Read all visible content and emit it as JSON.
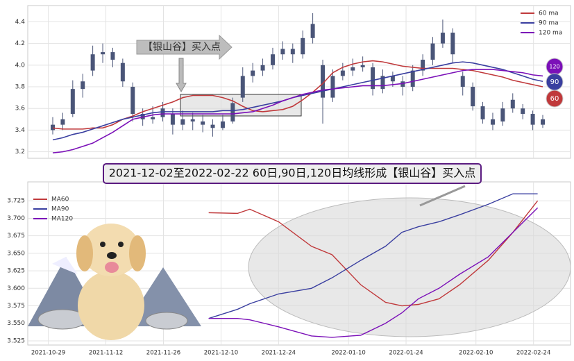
{
  "chart_data": [
    {
      "type": "candlestick",
      "legend": [
        "60 ma",
        "90 ma",
        "120 ma"
      ],
      "annotation": "【银山谷】买入点",
      "badges": [
        "120",
        "90",
        "60"
      ],
      "ylim": [
        3.14,
        4.55
      ],
      "yticks": [
        3.2,
        3.4,
        3.6,
        3.8,
        {
          "value": 4,
          "label": "4.0"
        },
        4.2,
        4.4
      ],
      "candle_color": "#4a5578",
      "ohlc": [
        [
          3.4,
          3.52,
          3.36,
          3.45
        ],
        [
          3.45,
          3.56,
          3.4,
          3.5
        ],
        [
          3.55,
          3.86,
          3.52,
          3.78
        ],
        [
          3.78,
          3.92,
          3.7,
          3.85
        ],
        [
          3.95,
          4.18,
          3.9,
          4.1
        ],
        [
          4.1,
          4.2,
          4.02,
          4.12
        ],
        [
          4.12,
          4.16,
          3.98,
          4.05
        ],
        [
          4.02,
          4.06,
          3.8,
          3.85
        ],
        [
          3.8,
          3.84,
          3.48,
          3.55
        ],
        [
          3.55,
          3.6,
          3.44,
          3.5
        ],
        [
          3.5,
          3.62,
          3.46,
          3.52
        ],
        [
          3.52,
          3.66,
          3.48,
          3.6
        ],
        [
          3.55,
          3.6,
          3.36,
          3.45
        ],
        [
          3.45,
          3.58,
          3.4,
          3.5
        ],
        [
          3.5,
          3.56,
          3.4,
          3.48
        ],
        [
          3.48,
          3.54,
          3.38,
          3.45
        ],
        [
          3.45,
          3.5,
          3.34,
          3.42
        ],
        [
          3.42,
          3.54,
          3.4,
          3.48
        ],
        [
          3.48,
          3.7,
          3.46,
          3.65
        ],
        [
          3.7,
          3.98,
          3.66,
          3.9
        ],
        [
          3.9,
          4.02,
          3.84,
          3.95
        ],
        [
          3.95,
          4.06,
          3.9,
          4.0
        ],
        [
          4.0,
          4.16,
          3.96,
          4.1
        ],
        [
          4.1,
          4.22,
          4.05,
          4.15
        ],
        [
          4.15,
          4.2,
          4.02,
          4.1
        ],
        [
          4.1,
          4.32,
          4.06,
          4.25
        ],
        [
          4.25,
          4.48,
          4.2,
          4.38
        ],
        [
          4.0,
          4.05,
          3.46,
          3.7
        ],
        [
          3.7,
          3.96,
          3.66,
          3.9
        ],
        [
          3.9,
          4.02,
          3.86,
          3.95
        ],
        [
          3.95,
          4.06,
          3.9,
          3.98
        ],
        [
          3.98,
          4.08,
          3.94,
          4.0
        ],
        [
          3.98,
          4.02,
          3.72,
          3.78
        ],
        [
          3.78,
          3.96,
          3.74,
          3.9
        ],
        [
          3.9,
          3.94,
          3.8,
          3.85
        ],
        [
          3.85,
          3.9,
          3.72,
          3.8
        ],
        [
          3.8,
          4.0,
          3.76,
          3.95
        ],
        [
          3.95,
          4.1,
          3.9,
          4.05
        ],
        [
          4.05,
          4.26,
          4.0,
          4.2
        ],
        [
          4.2,
          4.42,
          4.16,
          4.3
        ],
        [
          4.3,
          4.34,
          4.02,
          4.1
        ],
        [
          3.9,
          3.94,
          3.72,
          3.8
        ],
        [
          3.8,
          3.84,
          3.58,
          3.62
        ],
        [
          3.62,
          3.66,
          3.46,
          3.5
        ],
        [
          3.5,
          3.56,
          3.4,
          3.45
        ],
        [
          3.48,
          3.66,
          3.44,
          3.6
        ],
        [
          3.6,
          3.74,
          3.56,
          3.68
        ],
        [
          3.6,
          3.64,
          3.5,
          3.55
        ],
        [
          3.55,
          3.58,
          3.4,
          3.45
        ],
        [
          3.45,
          3.54,
          3.42,
          3.5
        ]
      ],
      "series": [
        {
          "name": "60 ma",
          "color": "#c0393b",
          "values": [
            3.42,
            3.41,
            3.41,
            3.41,
            3.42,
            3.42,
            3.45,
            3.5,
            3.53,
            3.57,
            3.6,
            3.63,
            3.66,
            3.7,
            3.72,
            3.72,
            3.72,
            3.7,
            3.67,
            3.62,
            3.58,
            3.57,
            3.58,
            3.59,
            3.62,
            3.68,
            3.75,
            3.83,
            3.93,
            3.98,
            4.01,
            4.03,
            4.04,
            4.03,
            4.01,
            3.99,
            3.98,
            3.97,
            3.97,
            3.97,
            3.97,
            3.96,
            3.95,
            3.93,
            3.91,
            3.89,
            3.86,
            3.84,
            3.82,
            3.8
          ]
        },
        {
          "name": "90 ma",
          "color": "#3a3fa0",
          "values": [
            3.31,
            3.33,
            3.36,
            3.38,
            3.41,
            3.44,
            3.47,
            3.5,
            3.52,
            3.54,
            3.56,
            3.57,
            3.57,
            3.57,
            3.57,
            3.57,
            3.57,
            3.58,
            3.58,
            3.59,
            3.61,
            3.63,
            3.65,
            3.67,
            3.7,
            3.72,
            3.74,
            3.76,
            3.78,
            3.8,
            3.82,
            3.84,
            3.86,
            3.88,
            3.9,
            3.92,
            3.94,
            3.96,
            3.98,
            4.0,
            4.02,
            4.03,
            4.02,
            4.0,
            3.98,
            3.96,
            3.93,
            3.9,
            3.87,
            3.85
          ]
        },
        {
          "name": "120 ma",
          "color": "#7b10b8",
          "values": [
            3.19,
            3.2,
            3.22,
            3.25,
            3.28,
            3.33,
            3.38,
            3.44,
            3.5,
            3.52,
            3.54,
            3.55,
            3.55,
            3.55,
            3.55,
            3.55,
            3.55,
            3.55,
            3.55,
            3.56,
            3.57,
            3.6,
            3.63,
            3.67,
            3.7,
            3.73,
            3.75,
            3.77,
            3.78,
            3.79,
            3.8,
            3.81,
            3.81,
            3.81,
            3.82,
            3.83,
            3.85,
            3.87,
            3.89,
            3.91,
            3.93,
            3.95,
            3.96,
            3.96,
            3.96,
            3.95,
            3.94,
            3.93,
            3.91,
            3.9
          ]
        }
      ]
    },
    {
      "type": "line",
      "title": "2021-12-02至2022-02-22 60日,90日,120日均线形成【银山谷】买入点",
      "xlim": [
        "2021-10-24",
        "2022-03-05"
      ],
      "xticks": [
        "2021-10-29",
        "2021-11-12",
        "2021-11-26",
        "2021-12-10",
        "2021-12-24",
        "2022-01-10",
        "2022-01-24",
        "2022-02-10",
        "2022-02-24"
      ],
      "ylim": [
        3.519,
        3.752
      ],
      "yticks": [
        3.525,
        {
          "value": 3.55,
          "label": "3.550"
        },
        3.575,
        {
          "value": 3.6,
          "label": "3.600"
        },
        3.625,
        {
          "value": 3.65,
          "label": "3.650"
        },
        3.675,
        {
          "value": 3.7,
          "label": "3.700"
        },
        3.725
      ],
      "x": [
        "2021-12-07",
        "2021-12-14",
        "2021-12-17",
        "2021-12-24",
        "2022-01-01",
        "2022-01-06",
        "2022-01-13",
        "2022-01-19",
        "2022-01-23",
        "2022-01-27",
        "2022-02-01",
        "2022-02-06",
        "2022-02-13",
        "2022-02-19",
        "2022-02-25"
      ],
      "series": [
        {
          "name": "MA60",
          "color": "#c0393b",
          "values": [
            3.708,
            3.707,
            3.713,
            3.695,
            3.66,
            3.648,
            3.605,
            3.58,
            3.575,
            3.577,
            3.585,
            3.605,
            3.64,
            3.68,
            3.725
          ]
        },
        {
          "name": "MA90",
          "color": "#3a3fa0",
          "values": [
            3.557,
            3.57,
            3.578,
            3.592,
            3.6,
            3.615,
            3.64,
            3.66,
            3.68,
            3.688,
            3.695,
            3.705,
            3.72,
            3.735,
            3.735
          ]
        },
        {
          "name": "MA120",
          "color": "#7b10b8",
          "values": [
            3.557,
            3.557,
            3.555,
            3.545,
            3.532,
            3.53,
            3.533,
            3.55,
            3.565,
            3.585,
            3.6,
            3.62,
            3.645,
            3.68,
            3.715
          ]
        }
      ]
    }
  ]
}
